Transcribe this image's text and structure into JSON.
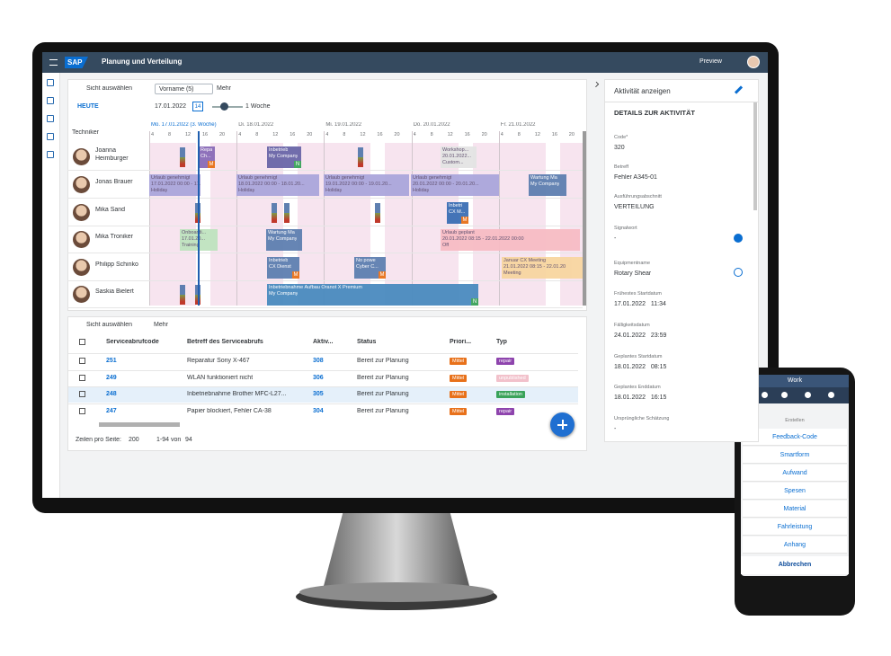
{
  "header": {
    "logo": "SAP",
    "title": "Planung und Verteilung",
    "preview": "Preview"
  },
  "toolbar": {
    "view_select": "Sicht auswählen",
    "filter_token": "Vorname (5)",
    "more": "Mehr",
    "today": "HEUTE",
    "date": "17.01.2022",
    "date_icon": "14",
    "range": "1 Woche"
  },
  "gantt": {
    "technician_header": "Techniker",
    "days": [
      "Mo. 17.01.2022 (3. Woche)",
      "Di. 18.01.2022",
      "Mi. 19.01.2022",
      "Do. 20.01.2022",
      "Fr. 21.01.2022"
    ],
    "hours": [
      "4",
      "8",
      "12",
      "16",
      "20"
    ],
    "technicians": [
      {
        "name": [
          "Joanna",
          "Heimburger"
        ],
        "tasks": [
          {
            "lines": [
              "Repa",
              "Ch..."
            ],
            "badge": "M"
          },
          {
            "lines": [
              "Inbetrieb",
              "My Company"
            ],
            "badge": "N"
          },
          {
            "lines": [
              "Workshop...",
              "20.01.2022...",
              "Custom..."
            ]
          }
        ]
      },
      {
        "name": [
          "Jonas Brauer"
        ],
        "tasks": [
          {
            "lines": [
              "Urlaub genehmigt",
              "17.01.2022 00:00 - 17.01.20...",
              "Holiday"
            ]
          },
          {
            "lines": [
              "Urlaub genehmigt",
              "18.01.2022 00:00 - 18.01.20...",
              "Holiday"
            ]
          },
          {
            "lines": [
              "Urlaub genehmigt",
              "19.01.2022 00:00 - 19.01.20...",
              "Holiday"
            ]
          },
          {
            "lines": [
              "Urlaub genehmigt",
              "20.01.2022 00:00 - 20.01.20...",
              "Holiday"
            ]
          },
          {
            "lines": [
              "Wartung Ma",
              "My Company"
            ]
          }
        ]
      },
      {
        "name": [
          "Mika Sand"
        ],
        "tasks": [
          {
            "lines": [
              "Inbetri",
              "CX M..."
            ],
            "badge": "M"
          }
        ]
      },
      {
        "name": [
          "Mika Troniker"
        ],
        "tasks": [
          {
            "lines": [
              "Onboardi...",
              "17.01.20...",
              "Training"
            ]
          },
          {
            "lines": [
              "Wartung Ma",
              "My Company"
            ]
          },
          {
            "lines": [
              "Urlaub geplant",
              "20.01.2022 08:15 - 22.01.2022 00:00",
              "Off"
            ]
          }
        ]
      },
      {
        "name": [
          "Philipp Schinko"
        ],
        "tasks": [
          {
            "lines": [
              "Inbetrieb",
              "CX Dienst"
            ],
            "badge": "M"
          },
          {
            "lines": [
              "No powe",
              "Cyber C..."
            ],
            "badge": "M"
          },
          {
            "lines": [
              "Januar CX Meeting",
              "21.01.2022 08:15 - 22.01.20",
              "Meeting"
            ]
          }
        ]
      },
      {
        "name": [
          "Saskia Bielert"
        ],
        "tasks": [
          {
            "lines": [
              "Inbetriebnahme Aufbau Oranot X Premium",
              "My Company"
            ],
            "badge": "N"
          }
        ]
      }
    ]
  },
  "table": {
    "view_select": "Sicht auswählen",
    "more": "Mehr",
    "columns": [
      "Serviceabrufcode",
      "Betreff des Serviceabrufs",
      "Aktiv...",
      "Status",
      "Priori...",
      "Typ"
    ],
    "rows": [
      [
        "251",
        "Reparatur Sony X-467",
        "308",
        "Bereit zur Planung",
        "Mittel",
        "repair"
      ],
      [
        "249",
        "WLAN funktioniert nicht",
        "306",
        "Bereit zur Planung",
        "Mittel",
        "unpublished"
      ],
      [
        "248",
        "Inbetriebnahme Brother MFC-L27...",
        "305",
        "Bereit zur Planung",
        "Mittel",
        "installation"
      ],
      [
        "247",
        "Papier blockiert, Fehler CA-38",
        "304",
        "Bereit zur Planung",
        "Mittel",
        "repair"
      ]
    ],
    "footer": {
      "rows_per_page": "Zeilen pro Seite:",
      "page_size": "200",
      "range": "1-94 von",
      "total": "94"
    }
  },
  "details": {
    "title": "Aktivität anzeigen",
    "section": "DETAILS ZUR AKTIVITÄT",
    "fields": [
      {
        "label": "Code*",
        "value": "320"
      },
      {
        "label": "Betreff",
        "value": "Fehler A345-01"
      },
      {
        "label": "Ausführungsabschnitt",
        "value": "VERTEILUNG"
      },
      {
        "label": "Signalwort",
        "value": "-"
      },
      {
        "label": "Equipmentname",
        "value": "Rotary Shear"
      },
      {
        "label": "Frühestes Startdatum",
        "value": "17.01.2022   11:34"
      },
      {
        "label": "Fälligkeitsdatum",
        "value": "24.01.2022   23:59"
      },
      {
        "label": "Geplantes Startdatum",
        "value": "18.01.2022   08:15"
      },
      {
        "label": "Geplantes Enddatum",
        "value": "18.01.2022   16:15"
      },
      {
        "label": "Ursprüngliche Schätzung",
        "value": "-"
      }
    ]
  },
  "phone": {
    "title": "Work",
    "menu_header": "Erstellen",
    "menu": [
      "Feedback-Code",
      "Smartform",
      "Aufwand",
      "Spesen",
      "Material",
      "Fahrleistung",
      "Anhang"
    ],
    "cancel": "Abbrechen"
  }
}
